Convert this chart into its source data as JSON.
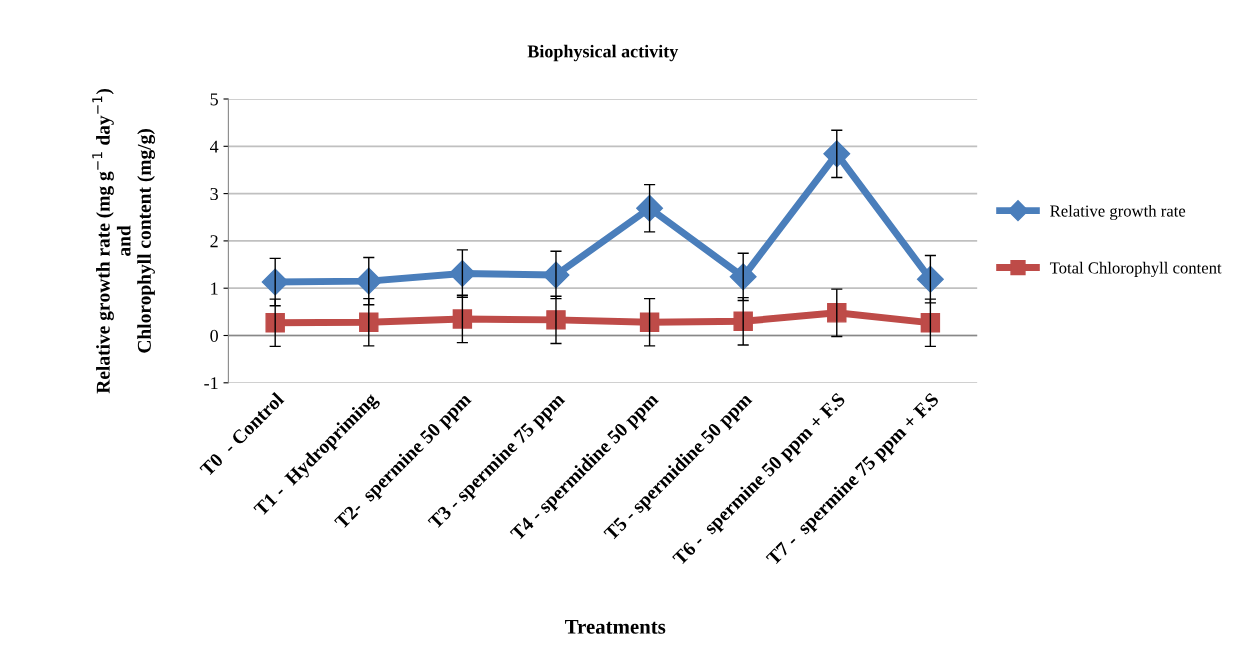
{
  "chart_data": {
    "type": "line",
    "title": "Biophysical activity",
    "xlabel": "Treatments",
    "ylabel": "Relative growth rate (mg g$^{−1}$ day$^{−1}$)\nand\nChlorophyll content (mg/g)",
    "categories": [
      "T0  - Control",
      "T1 -  Hydropriming",
      "T2-  spermine 50 ppm",
      "T3 - spermine 75 ppm",
      "T4 - spermidine 50 ppm",
      "T5 - spermidine 50 ppm",
      "T6 -  spermine 50 ppm + F.S",
      "T7 -  spermine 75 ppm + F.S"
    ],
    "series": [
      {
        "name": "Relative growth rate",
        "color": "#4a7ebb",
        "marker": "diamond",
        "values": [
          1.13,
          1.15,
          1.31,
          1.28,
          2.69,
          1.24,
          3.84,
          1.19
        ],
        "errors": [
          0.5,
          0.5,
          0.5,
          0.5,
          0.5,
          0.5,
          0.5,
          0.5
        ]
      },
      {
        "name": "Total Chlorophyll content",
        "color": "#be4b48",
        "marker": "square",
        "values": [
          0.27,
          0.28,
          0.35,
          0.33,
          0.28,
          0.3,
          0.48,
          0.27
        ],
        "errors": [
          0.5,
          0.5,
          0.5,
          0.5,
          0.5,
          0.5,
          0.5,
          0.5
        ]
      }
    ],
    "ylim": [
      -1,
      5
    ],
    "yticks": [
      -1,
      0,
      1,
      2,
      3,
      4,
      5
    ],
    "grid": "y",
    "legend": "right",
    "line_style": "solid"
  }
}
